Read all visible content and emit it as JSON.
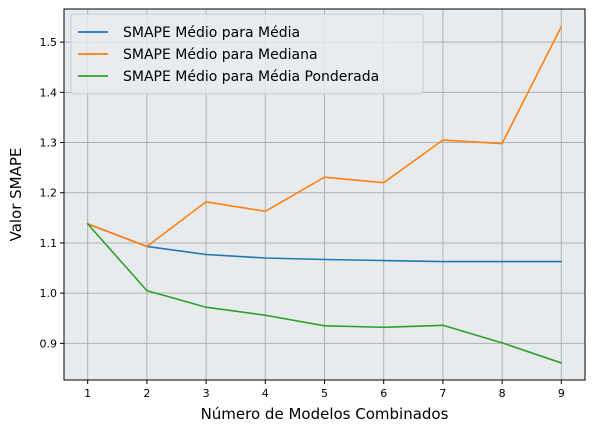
{
  "chart_data": {
    "type": "line",
    "xlabel": "Número de Modelos Combinados",
    "ylabel": "Valor SMAPE",
    "x": [
      1,
      2,
      3,
      4,
      5,
      6,
      7,
      8,
      9
    ],
    "xlim": [
      0.6,
      9.4
    ],
    "ylim": [
      0.827,
      1.566
    ],
    "yticks": [
      0.9,
      1.0,
      1.1,
      1.2,
      1.3,
      1.4,
      1.5
    ],
    "ytick_labels": [
      "0.9",
      "1.0",
      "1.1",
      "1.2",
      "1.3",
      "1.4",
      "1.5"
    ],
    "xtick_labels": [
      "1",
      "2",
      "3",
      "4",
      "5",
      "6",
      "7",
      "8",
      "9"
    ],
    "grid": true,
    "legend_position": "top-left",
    "background": "#e8ebee",
    "series": [
      {
        "name": "SMAPE Médio para Média",
        "color": "#1f77b4",
        "values": [
          1.138,
          1.093,
          1.077,
          1.07,
          1.067,
          1.065,
          1.063,
          1.063,
          1.063
        ]
      },
      {
        "name": "SMAPE Médio para Mediana",
        "color": "#ff7f0e",
        "values": [
          1.138,
          1.093,
          1.182,
          1.163,
          1.231,
          1.22,
          1.305,
          1.298,
          1.531
        ]
      },
      {
        "name": "SMAPE Médio para Média Ponderada",
        "color": "#2ca02c",
        "values": [
          1.138,
          1.005,
          0.972,
          0.956,
          0.935,
          0.932,
          0.936,
          0.901,
          0.861
        ]
      }
    ]
  }
}
